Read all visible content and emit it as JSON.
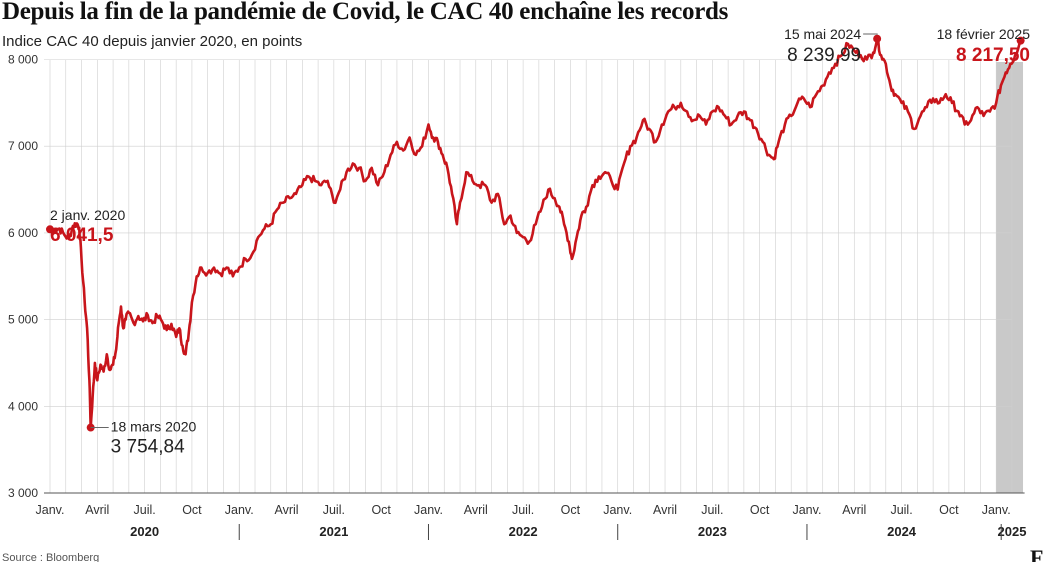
{
  "title": "Depuis la fin de la pandémie de Covid, le CAC 40 enchaîne les records",
  "subtitle": "Indice CAC 40 depuis janvier 2020, en points",
  "source": "Source : Bloomberg",
  "logo": "F",
  "colors": {
    "line": "#c8151b",
    "grid": "#cfcfcf",
    "shade": "#c9c9c9",
    "text": "#1a1a1a",
    "highlight": "#c8151b"
  },
  "chart_data": {
    "type": "line",
    "title": "Depuis la fin de la pandémie de Covid, le CAC 40 enchaîne les records",
    "subtitle": "Indice CAC 40 depuis janvier 2020, en points",
    "xlabel": "",
    "ylabel": "",
    "x_unit": "months since January 2020",
    "ylim": [
      3000,
      8300
    ],
    "xlim": [
      0,
      62.5
    ],
    "grid": "vertical gridlines at months, horizontal at y ticks",
    "shaded_period": {
      "from": 60,
      "to": 61.7,
      "label": "2025"
    },
    "y_ticks": [
      {
        "value": 3000,
        "label": "3 000"
      },
      {
        "value": 4000,
        "label": "4 000"
      },
      {
        "value": 5000,
        "label": "5 000"
      },
      {
        "value": 6000,
        "label": "6 000"
      },
      {
        "value": 7000,
        "label": "7 000"
      },
      {
        "value": 8000,
        "label": "8 000"
      }
    ],
    "x_ticks": [
      {
        "month": 0,
        "label": "Janv."
      },
      {
        "month": 3,
        "label": "Avril"
      },
      {
        "month": 6,
        "label": "Juil."
      },
      {
        "month": 9,
        "label": "Oct"
      },
      {
        "month": 12,
        "label": "Janv."
      },
      {
        "month": 15,
        "label": "Avril"
      },
      {
        "month": 18,
        "label": "Juil."
      },
      {
        "month": 21,
        "label": "Oct"
      },
      {
        "month": 24,
        "label": "Janv."
      },
      {
        "month": 27,
        "label": "Avril"
      },
      {
        "month": 30,
        "label": "Juil."
      },
      {
        "month": 33,
        "label": "Oct"
      },
      {
        "month": 36,
        "label": "Janv."
      },
      {
        "month": 39,
        "label": "Avril"
      },
      {
        "month": 42,
        "label": "Juil."
      },
      {
        "month": 45,
        "label": "Oct"
      },
      {
        "month": 48,
        "label": "Janv."
      },
      {
        "month": 51,
        "label": "Avril"
      },
      {
        "month": 54,
        "label": "Juil."
      },
      {
        "month": 57,
        "label": "Oct"
      },
      {
        "month": 60,
        "label": "Janv."
      }
    ],
    "year_labels": [
      {
        "month": 6,
        "label": "2020"
      },
      {
        "month": 18,
        "label": "2021"
      },
      {
        "month": 30,
        "label": "2022"
      },
      {
        "month": 42,
        "label": "2023"
      },
      {
        "month": 54,
        "label": "2024"
      },
      {
        "month": 61,
        "label": "2025"
      }
    ],
    "series": [
      {
        "points": [
          [
            0.0,
            6041.5
          ],
          [
            0.3,
            6030
          ],
          [
            0.6,
            6050
          ],
          [
            0.9,
            5980
          ],
          [
            1.2,
            5930
          ],
          [
            1.45,
            6080
          ],
          [
            1.7,
            6110
          ],
          [
            1.85,
            6060
          ],
          [
            2.0,
            5700
          ],
          [
            2.2,
            5200
          ],
          [
            2.35,
            4900
          ],
          [
            2.5,
            4300
          ],
          [
            2.58,
            3754.84
          ],
          [
            2.7,
            4100
          ],
          [
            2.85,
            4500
          ],
          [
            3.0,
            4300
          ],
          [
            3.2,
            4480
          ],
          [
            3.4,
            4400
          ],
          [
            3.6,
            4600
          ],
          [
            3.8,
            4420
          ],
          [
            4.0,
            4480
          ],
          [
            4.2,
            4660
          ],
          [
            4.35,
            4950
          ],
          [
            4.5,
            5150
          ],
          [
            4.65,
            4900
          ],
          [
            4.8,
            5000
          ],
          [
            5.0,
            5080
          ],
          [
            5.3,
            4960
          ],
          [
            5.6,
            5040
          ],
          [
            5.9,
            4980
          ],
          [
            6.2,
            5050
          ],
          [
            6.5,
            4960
          ],
          [
            6.8,
            5040
          ],
          [
            7.1,
            4980
          ],
          [
            7.4,
            4880
          ],
          [
            7.7,
            4950
          ],
          [
            8.0,
            4800
          ],
          [
            8.2,
            4900
          ],
          [
            8.4,
            4700
          ],
          [
            8.6,
            4600
          ],
          [
            8.8,
            4850
          ],
          [
            9.0,
            5200
          ],
          [
            9.3,
            5500
          ],
          [
            9.6,
            5600
          ],
          [
            10.0,
            5540
          ],
          [
            10.4,
            5600
          ],
          [
            10.8,
            5530
          ],
          [
            11.2,
            5600
          ],
          [
            11.6,
            5500
          ],
          [
            12.0,
            5600
          ],
          [
            12.4,
            5700
          ],
          [
            12.8,
            5750
          ],
          [
            13.2,
            5950
          ],
          [
            13.6,
            6050
          ],
          [
            14.0,
            6100
          ],
          [
            14.4,
            6270
          ],
          [
            14.8,
            6350
          ],
          [
            15.2,
            6400
          ],
          [
            15.6,
            6450
          ],
          [
            16.0,
            6550
          ],
          [
            16.4,
            6650
          ],
          [
            16.8,
            6600
          ],
          [
            17.2,
            6550
          ],
          [
            17.6,
            6600
          ],
          [
            18.0,
            6350
          ],
          [
            18.4,
            6500
          ],
          [
            18.8,
            6700
          ],
          [
            19.2,
            6800
          ],
          [
            19.6,
            6750
          ],
          [
            20.0,
            6600
          ],
          [
            20.4,
            6750
          ],
          [
            20.8,
            6550
          ],
          [
            21.2,
            6700
          ],
          [
            21.6,
            6900
          ],
          [
            22.0,
            7050
          ],
          [
            22.4,
            6950
          ],
          [
            22.8,
            7100
          ],
          [
            23.2,
            6900
          ],
          [
            23.6,
            7000
          ],
          [
            24.0,
            7250
          ],
          [
            24.3,
            7100
          ],
          [
            24.6,
            7050
          ],
          [
            24.9,
            6900
          ],
          [
            25.2,
            6750
          ],
          [
            25.5,
            6450
          ],
          [
            25.8,
            6100
          ],
          [
            26.0,
            6350
          ],
          [
            26.4,
            6700
          ],
          [
            26.8,
            6600
          ],
          [
            27.2,
            6550
          ],
          [
            27.6,
            6550
          ],
          [
            28.0,
            6350
          ],
          [
            28.4,
            6450
          ],
          [
            28.8,
            6100
          ],
          [
            29.2,
            6200
          ],
          [
            29.6,
            6000
          ],
          [
            30.0,
            5950
          ],
          [
            30.4,
            5900
          ],
          [
            30.8,
            6100
          ],
          [
            31.2,
            6300
          ],
          [
            31.6,
            6500
          ],
          [
            32.0,
            6400
          ],
          [
            32.3,
            6300
          ],
          [
            32.6,
            6100
          ],
          [
            32.9,
            5900
          ],
          [
            33.1,
            5700
          ],
          [
            33.4,
            5950
          ],
          [
            33.7,
            6200
          ],
          [
            34.0,
            6300
          ],
          [
            34.4,
            6550
          ],
          [
            34.8,
            6650
          ],
          [
            35.2,
            6700
          ],
          [
            35.6,
            6600
          ],
          [
            36.0,
            6500
          ],
          [
            36.4,
            6800
          ],
          [
            36.8,
            7000
          ],
          [
            37.2,
            7100
          ],
          [
            37.6,
            7300
          ],
          [
            38.0,
            7200
          ],
          [
            38.4,
            7050
          ],
          [
            38.8,
            7250
          ],
          [
            39.2,
            7400
          ],
          [
            39.6,
            7450
          ],
          [
            40.0,
            7500
          ],
          [
            40.4,
            7400
          ],
          [
            40.8,
            7300
          ],
          [
            41.2,
            7350
          ],
          [
            41.6,
            7250
          ],
          [
            42.0,
            7400
          ],
          [
            42.4,
            7450
          ],
          [
            42.8,
            7350
          ],
          [
            43.2,
            7250
          ],
          [
            43.6,
            7350
          ],
          [
            44.0,
            7400
          ],
          [
            44.4,
            7300
          ],
          [
            44.8,
            7200
          ],
          [
            45.2,
            7050
          ],
          [
            45.6,
            6900
          ],
          [
            45.9,
            6850
          ],
          [
            46.2,
            7050
          ],
          [
            46.6,
            7250
          ],
          [
            47.0,
            7350
          ],
          [
            47.4,
            7500
          ],
          [
            47.8,
            7550
          ],
          [
            48.2,
            7450
          ],
          [
            48.6,
            7600
          ],
          [
            49.0,
            7700
          ],
          [
            49.4,
            7850
          ],
          [
            49.8,
            7950
          ],
          [
            50.2,
            8050
          ],
          [
            50.6,
            8180
          ],
          [
            51.0,
            8100
          ],
          [
            51.4,
            8050
          ],
          [
            51.8,
            8000
          ],
          [
            52.2,
            8080
          ],
          [
            52.45,
            8239.99
          ],
          [
            52.7,
            8050
          ],
          [
            53.0,
            7950
          ],
          [
            53.3,
            7700
          ],
          [
            53.6,
            7600
          ],
          [
            54.0,
            7500
          ],
          [
            54.4,
            7400
          ],
          [
            54.8,
            7200
          ],
          [
            55.2,
            7350
          ],
          [
            55.6,
            7450
          ],
          [
            56.0,
            7550
          ],
          [
            56.4,
            7500
          ],
          [
            56.8,
            7600
          ],
          [
            57.2,
            7500
          ],
          [
            57.6,
            7400
          ],
          [
            58.0,
            7250
          ],
          [
            58.4,
            7300
          ],
          [
            58.8,
            7450
          ],
          [
            59.2,
            7350
          ],
          [
            59.6,
            7400
          ],
          [
            60.0,
            7500
          ],
          [
            60.3,
            7700
          ],
          [
            60.6,
            7850
          ],
          [
            60.9,
            7950
          ],
          [
            61.2,
            8050
          ],
          [
            61.55,
            8217.5
          ]
        ]
      }
    ],
    "annotations": [
      {
        "id": "start",
        "date": "2 janv. 2020",
        "value_label": "6 041,5",
        "month": 0.0,
        "value": 6041.5,
        "highlight": true,
        "label_anchor": "above"
      },
      {
        "id": "low",
        "date": "18 mars 2020",
        "value_label": "3 754,84",
        "month": 2.58,
        "value": 3754.84,
        "highlight": false,
        "label_anchor": "right"
      },
      {
        "id": "peak",
        "date": "15 mai 2024",
        "value_label": "8 239,99",
        "month": 52.45,
        "value": 8239.99,
        "highlight": false,
        "label_anchor": "left-above"
      },
      {
        "id": "last",
        "date": "18 février 2025",
        "value_label": "8 217,50",
        "month": 61.55,
        "value": 8217.5,
        "highlight": true,
        "label_anchor": "above-left"
      }
    ]
  }
}
